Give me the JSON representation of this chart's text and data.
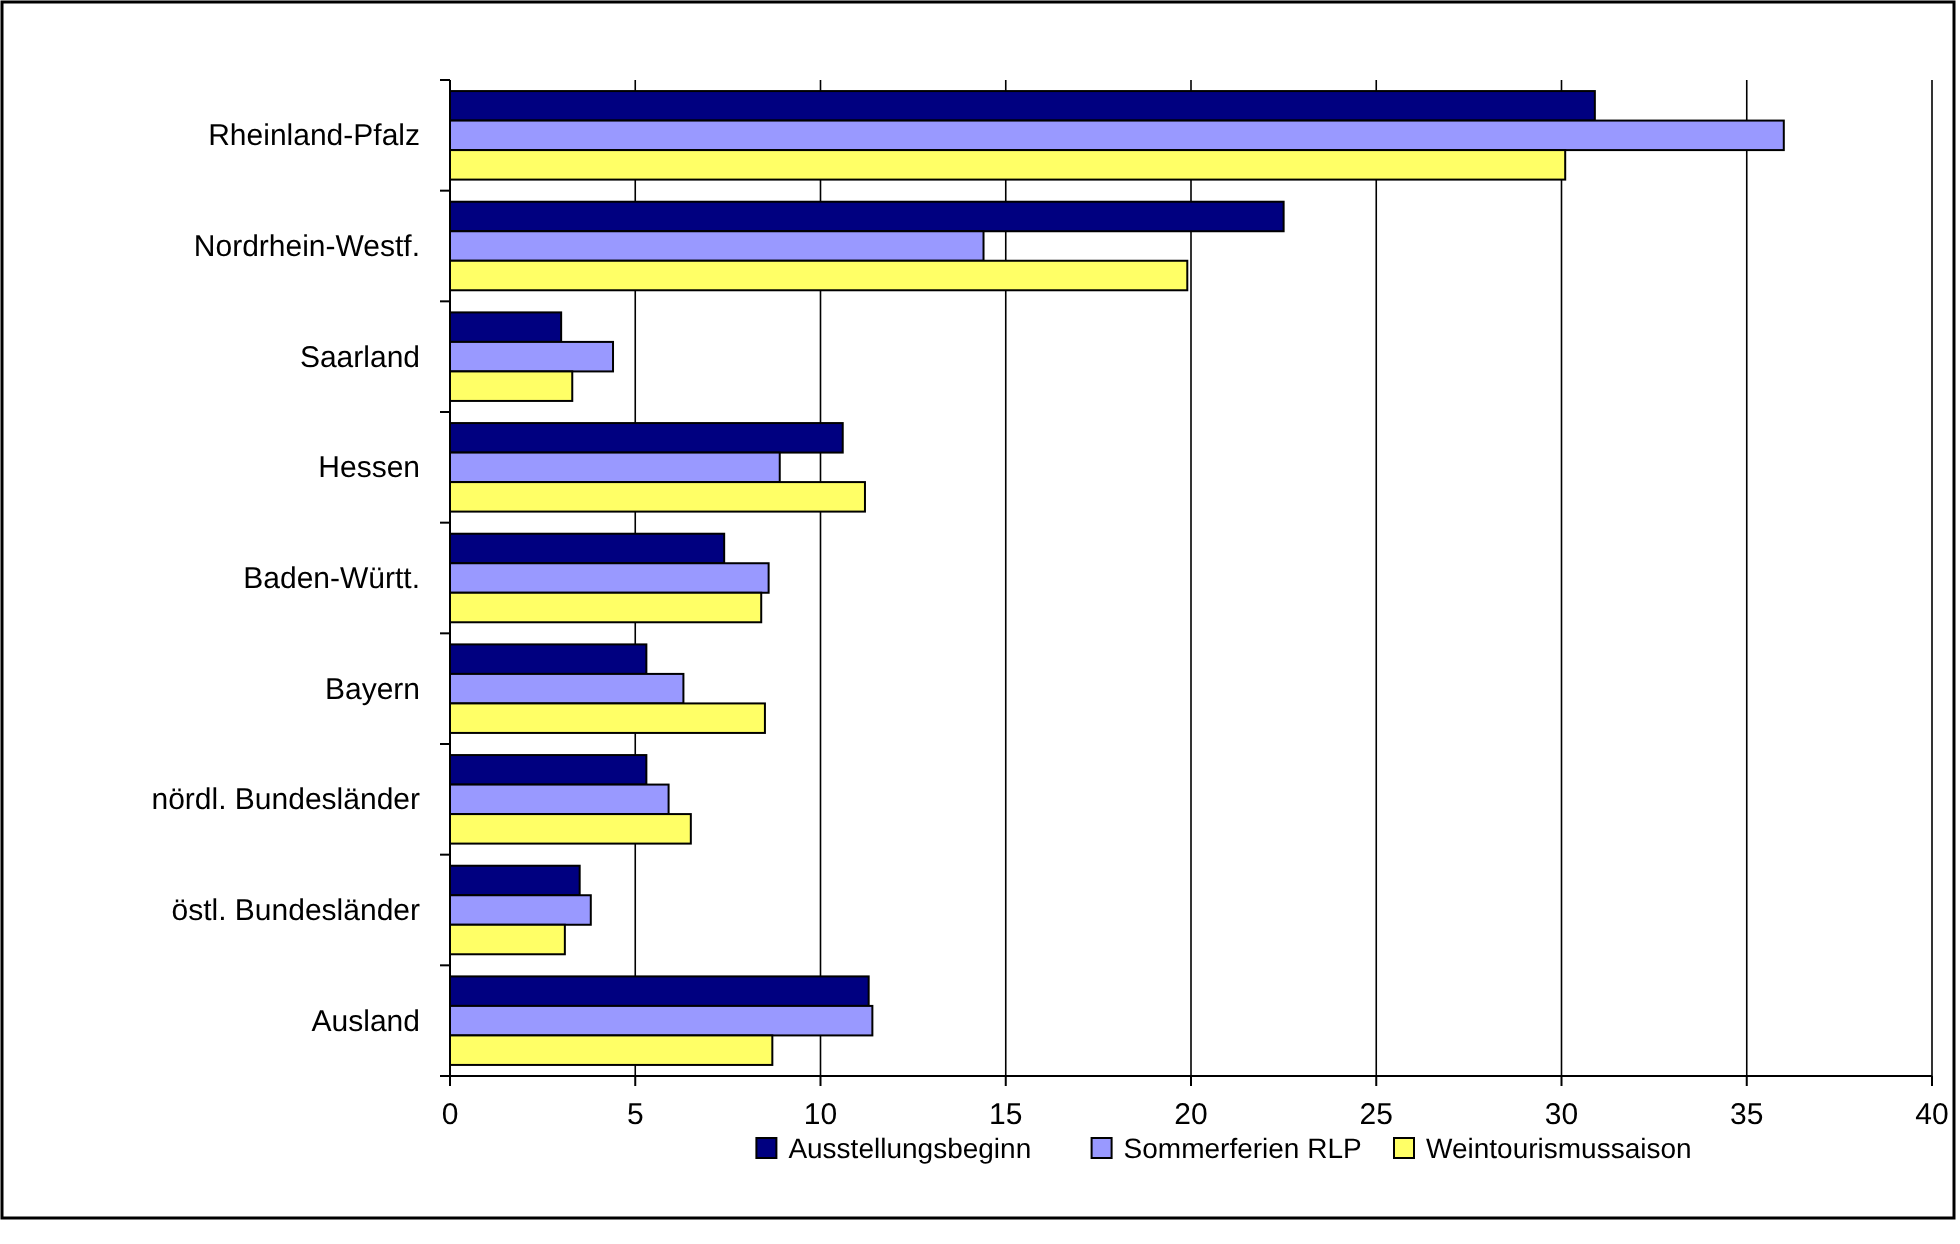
{
  "chart_data": {
    "type": "bar",
    "orientation": "horizontal",
    "categories": [
      "Rheinland-Pfalz",
      "Nordrhein-Westf.",
      "Saarland",
      "Hessen",
      "Baden-Württ.",
      "Bayern",
      "nördl. Bundesländer",
      "östl. Bundesländer",
      "Ausland"
    ],
    "series": [
      {
        "name": "Ausstellungsbeginn",
        "color": "#000080",
        "values": [
          30.9,
          22.5,
          3.0,
          10.6,
          7.4,
          5.3,
          5.3,
          3.5,
          11.3
        ]
      },
      {
        "name": "Sommerferien RLP",
        "color": "#9999ff",
        "values": [
          36.0,
          14.4,
          4.4,
          8.9,
          8.6,
          6.3,
          5.9,
          3.8,
          11.4
        ]
      },
      {
        "name": "Weintourismussaison",
        "color": "#ffff66",
        "values": [
          30.1,
          19.9,
          3.3,
          11.2,
          8.4,
          8.5,
          6.5,
          3.1,
          8.7
        ]
      }
    ],
    "xlim": [
      0,
      40
    ],
    "xticks": [
      0,
      5,
      10,
      15,
      20,
      25,
      30,
      35,
      40
    ],
    "grid": "x",
    "legend": "bottom"
  }
}
